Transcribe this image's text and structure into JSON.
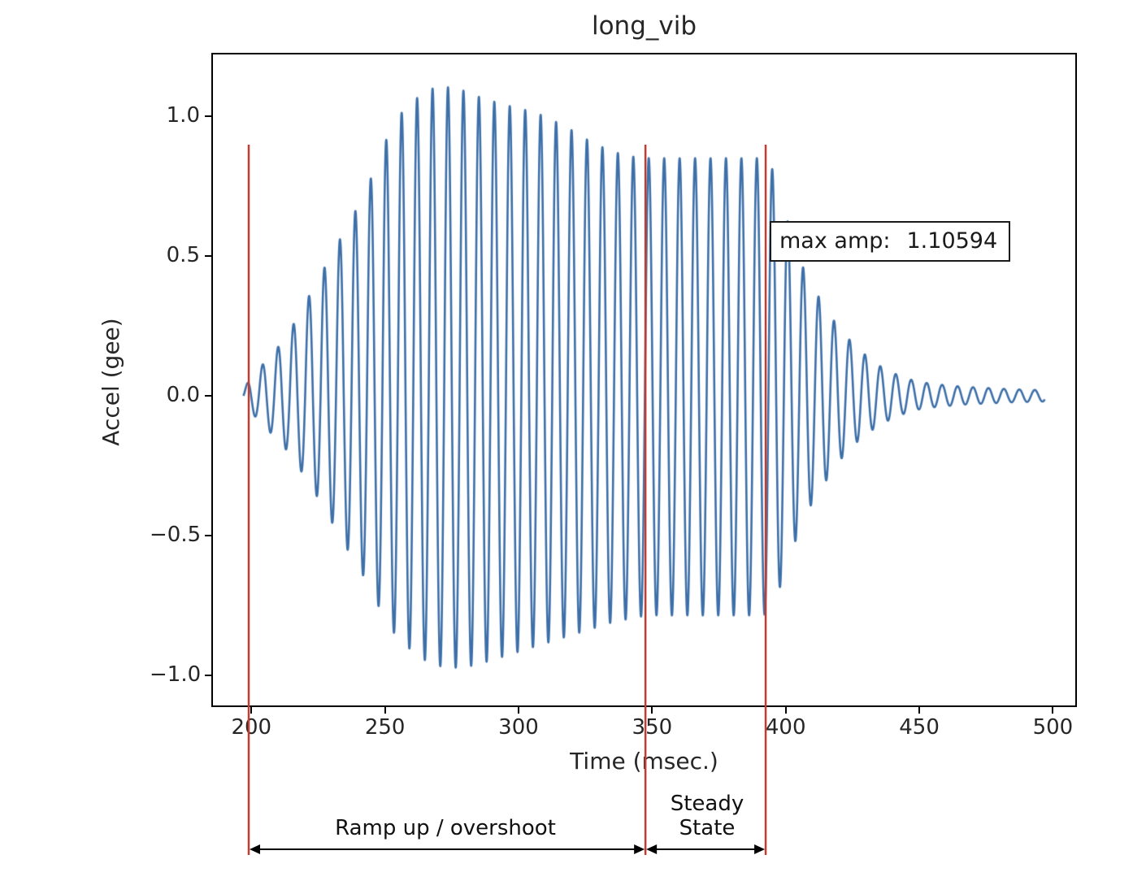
{
  "chart_data": {
    "type": "line",
    "title": "long_vib",
    "xlabel": "Time (msec.)",
    "ylabel": "Accel (gee)",
    "xlim": [
      185,
      509
    ],
    "ylim": [
      -1.113,
      1.227
    ],
    "xticks": [
      200,
      250,
      300,
      350,
      400,
      450,
      500
    ],
    "xtick_labels": [
      "200",
      "250",
      "300",
      "350",
      "400",
      "450",
      "500"
    ],
    "yticks": [
      1.0,
      0.5,
      0.0,
      -0.5,
      -1.0
    ],
    "ytick_labels": [
      "1.0",
      "0.5",
      "0.0",
      "−0.5",
      "−1.0"
    ],
    "grid": false,
    "line_color": "#3d6fa8",
    "region_line_color": "#c23c31",
    "signal": {
      "frequency_hz": 173,
      "t_start_ms": 197,
      "t_end_ms": 497,
      "envelope_pos": [
        [
          197,
          0.02
        ],
        [
          200,
          0.07
        ],
        [
          204,
          0.11
        ],
        [
          208,
          0.15
        ],
        [
          212,
          0.2
        ],
        [
          216,
          0.26
        ],
        [
          220,
          0.33
        ],
        [
          224,
          0.4
        ],
        [
          228,
          0.47
        ],
        [
          232,
          0.54
        ],
        [
          236,
          0.61
        ],
        [
          240,
          0.68
        ],
        [
          244,
          0.76
        ],
        [
          248,
          0.86
        ],
        [
          252,
          0.95
        ],
        [
          256,
          1.01
        ],
        [
          260,
          1.05
        ],
        [
          264,
          1.08
        ],
        [
          268,
          1.1
        ],
        [
          272,
          1.106
        ],
        [
          276,
          1.1
        ],
        [
          280,
          1.09
        ],
        [
          285,
          1.07
        ],
        [
          290,
          1.055
        ],
        [
          295,
          1.04
        ],
        [
          300,
          1.03
        ],
        [
          305,
          1.015
        ],
        [
          310,
          1.0
        ],
        [
          315,
          0.975
        ],
        [
          320,
          0.95
        ],
        [
          325,
          0.92
        ],
        [
          330,
          0.895
        ],
        [
          335,
          0.875
        ],
        [
          340,
          0.86
        ],
        [
          345,
          0.852
        ],
        [
          350,
          0.85
        ],
        [
          390,
          0.85
        ],
        [
          394,
          0.84
        ],
        [
          398,
          0.72
        ],
        [
          402,
          0.58
        ],
        [
          406,
          0.47
        ],
        [
          410,
          0.39
        ],
        [
          414,
          0.33
        ],
        [
          418,
          0.27
        ],
        [
          422,
          0.22
        ],
        [
          426,
          0.18
        ],
        [
          430,
          0.145
        ],
        [
          434,
          0.115
        ],
        [
          438,
          0.09
        ],
        [
          442,
          0.075
        ],
        [
          446,
          0.06
        ],
        [
          450,
          0.05
        ],
        [
          456,
          0.042
        ],
        [
          462,
          0.036
        ],
        [
          468,
          0.032
        ],
        [
          476,
          0.028
        ],
        [
          484,
          0.024
        ],
        [
          497,
          0.02
        ]
      ],
      "envelope_neg": [
        [
          197,
          0.02
        ],
        [
          200,
          0.06
        ],
        [
          204,
          0.1
        ],
        [
          208,
          0.14
        ],
        [
          212,
          0.18
        ],
        [
          216,
          0.23
        ],
        [
          220,
          0.29
        ],
        [
          224,
          0.35
        ],
        [
          228,
          0.42
        ],
        [
          232,
          0.48
        ],
        [
          236,
          0.55
        ],
        [
          240,
          0.61
        ],
        [
          244,
          0.68
        ],
        [
          248,
          0.76
        ],
        [
          252,
          0.83
        ],
        [
          256,
          0.88
        ],
        [
          260,
          0.91
        ],
        [
          264,
          0.94
        ],
        [
          268,
          0.96
        ],
        [
          272,
          0.97
        ],
        [
          276,
          0.972
        ],
        [
          280,
          0.97
        ],
        [
          285,
          0.96
        ],
        [
          290,
          0.945
        ],
        [
          295,
          0.93
        ],
        [
          300,
          0.915
        ],
        [
          305,
          0.9
        ],
        [
          310,
          0.885
        ],
        [
          315,
          0.87
        ],
        [
          320,
          0.855
        ],
        [
          325,
          0.84
        ],
        [
          330,
          0.825
        ],
        [
          335,
          0.81
        ],
        [
          340,
          0.8
        ],
        [
          345,
          0.79
        ],
        [
          350,
          0.785
        ],
        [
          390,
          0.785
        ],
        [
          394,
          0.78
        ],
        [
          398,
          0.68
        ],
        [
          402,
          0.56
        ],
        [
          406,
          0.46
        ],
        [
          410,
          0.38
        ],
        [
          414,
          0.32
        ],
        [
          418,
          0.26
        ],
        [
          422,
          0.21
        ],
        [
          426,
          0.17
        ],
        [
          430,
          0.14
        ],
        [
          434,
          0.11
        ],
        [
          438,
          0.09
        ],
        [
          442,
          0.072
        ],
        [
          446,
          0.058
        ],
        [
          450,
          0.048
        ],
        [
          456,
          0.04
        ],
        [
          462,
          0.035
        ],
        [
          468,
          0.03
        ],
        [
          476,
          0.027
        ],
        [
          484,
          0.023
        ],
        [
          497,
          0.02
        ]
      ]
    },
    "regions": {
      "boundaries_ms": [
        199,
        347.5,
        392.5
      ],
      "ramp": {
        "label": "Ramp up / overshoot",
        "from_ms": 199,
        "to_ms": 347.5
      },
      "steady": {
        "label_line1": "Steady",
        "label_line2": "State",
        "from_ms": 347.5,
        "to_ms": 392.5
      }
    },
    "annotations": {
      "max_amp_label": "max amp:",
      "max_amp_value": "1.10594"
    }
  }
}
